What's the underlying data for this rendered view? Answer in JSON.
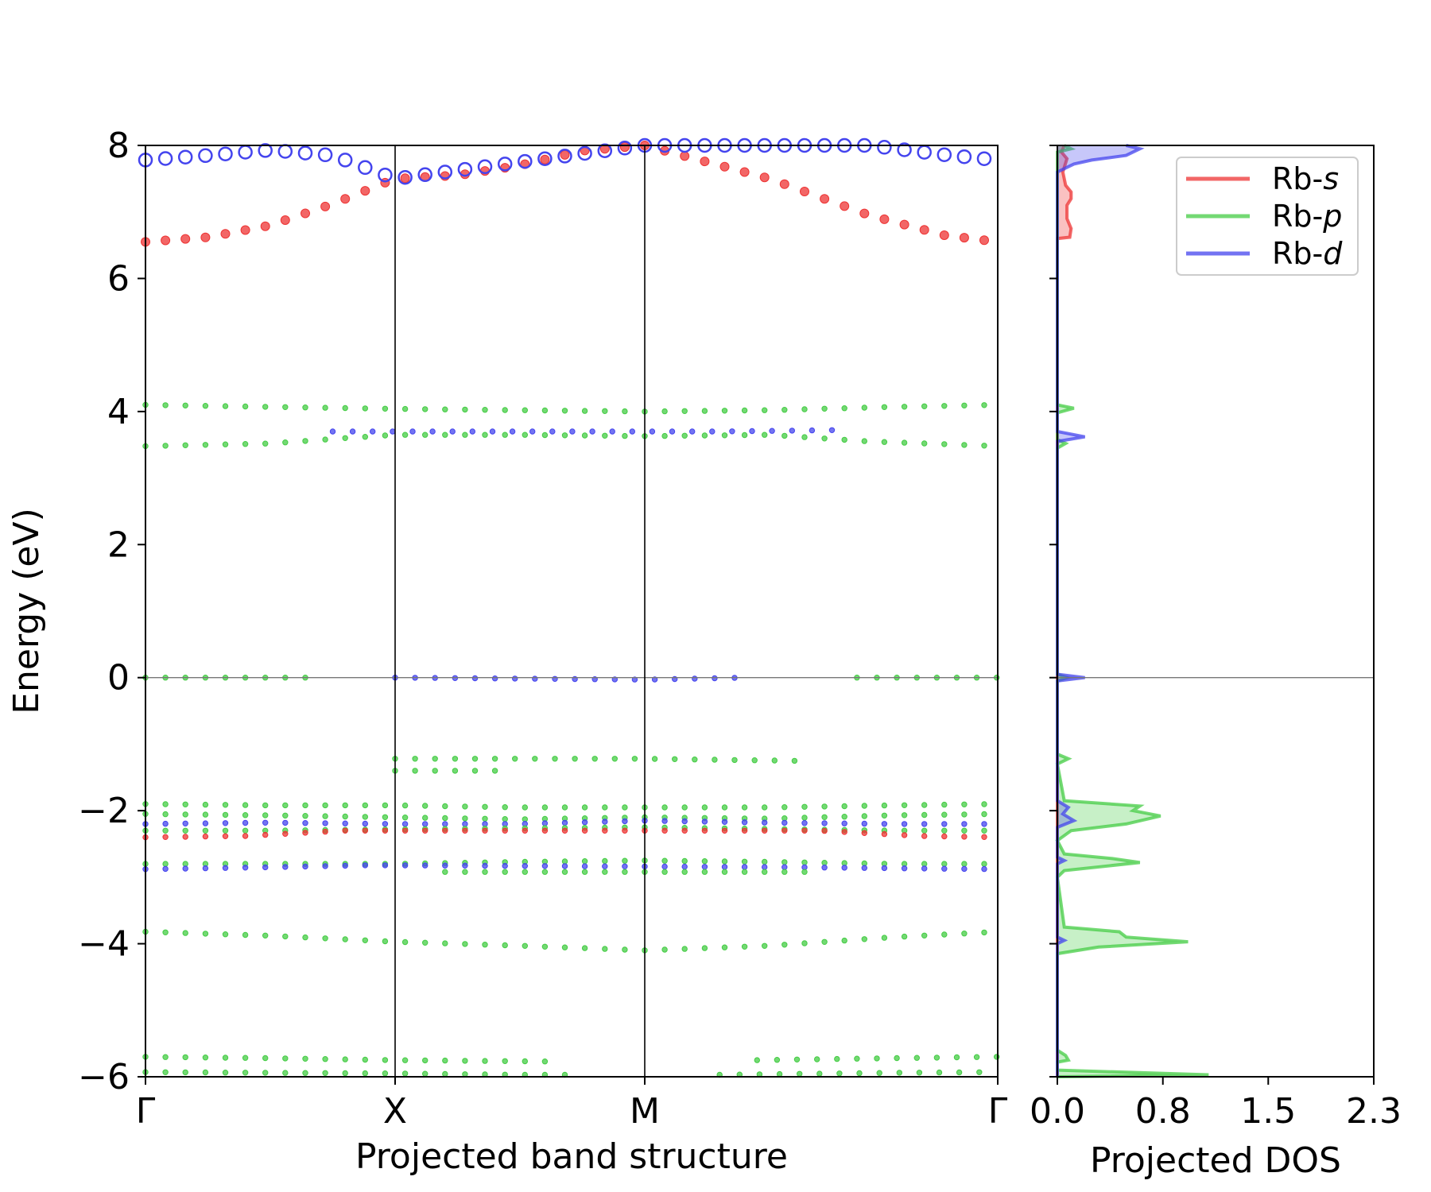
{
  "chart_data": [
    {
      "type": "scatter",
      "title": "",
      "xlabel": "Projected band structure",
      "ylabel": "Energy (eV)",
      "ylim": [
        -6,
        8
      ],
      "y_ticks": [
        "8",
        "6",
        "4",
        "2",
        "0",
        "−2",
        "−4",
        "−6"
      ],
      "y_tick_values": [
        8,
        6,
        4,
        2,
        0,
        -2,
        -4,
        -6
      ],
      "kpath_labels": [
        "Γ",
        "X",
        "M",
        "Γ"
      ],
      "kpath_positions": [
        0,
        1,
        2,
        3.414
      ],
      "fermi_level": 0,
      "grid": false,
      "series_colors": {
        "s": "#ee3333",
        "p": "#44cc44",
        "d": "#4444ee"
      },
      "bands": [
        {
          "character": "s",
          "points": [
            [
              0,
              6.55
            ],
            [
              0.25,
              6.62
            ],
            [
              0.5,
              6.8
            ],
            [
              0.75,
              7.12
            ],
            [
              1,
              7.5
            ],
            [
              1.25,
              7.55
            ],
            [
              1.5,
              7.7
            ],
            [
              1.75,
              7.92
            ],
            [
              2,
              8.0
            ],
            [
              2.5,
              7.5
            ],
            [
              2.9,
              6.95
            ],
            [
              3.2,
              6.65
            ],
            [
              3.414,
              6.55
            ]
          ]
        },
        {
          "character": "d",
          "points": [
            [
              0,
              7.78
            ],
            [
              0.25,
              7.85
            ],
            [
              0.5,
              7.93
            ],
            [
              0.75,
              7.85
            ],
            [
              1,
              7.5
            ],
            [
              2,
              8.0
            ],
            [
              2.9,
              8.0
            ],
            [
              3.2,
              7.86
            ],
            [
              3.414,
              7.78
            ]
          ]
        },
        {
          "character": "p",
          "points": [
            [
              0,
              4.1
            ],
            [
              0.5,
              4.07
            ],
            [
              1,
              4.04
            ],
            [
              1.5,
              4.02
            ],
            [
              2,
              4.0
            ],
            [
              2.5,
              4.02
            ],
            [
              3,
              4.07
            ],
            [
              3.414,
              4.1
            ]
          ]
        },
        {
          "character": "p",
          "points": [
            [
              0,
              3.48
            ],
            [
              0.5,
              3.52
            ],
            [
              0.8,
              3.6
            ],
            [
              1,
              3.65
            ],
            [
              1.5,
              3.65
            ],
            [
              2,
              3.63
            ],
            [
              2.5,
              3.65
            ],
            [
              2.9,
              3.55
            ],
            [
              3.414,
              3.48
            ]
          ]
        },
        {
          "character": "d",
          "points": [
            [
              0.75,
              3.7
            ],
            [
              1,
              3.7
            ],
            [
              2.3,
              3.7
            ],
            [
              2.75,
              3.72
            ]
          ]
        },
        {
          "character": "p",
          "points": [
            [
              0,
              0.0
            ],
            [
              0.65,
              0.0
            ]
          ]
        },
        {
          "character": "d",
          "points": [
            [
              1,
              0.0
            ],
            [
              2,
              -0.03
            ],
            [
              2.4,
              0.0
            ]
          ]
        },
        {
          "character": "p",
          "points": [
            [
              2.85,
              0.0
            ],
            [
              3.414,
              0.0
            ]
          ]
        },
        {
          "character": "p",
          "points": [
            [
              1,
              -1.22
            ],
            [
              1.5,
              -1.22
            ],
            [
              2,
              -1.22
            ],
            [
              2.6,
              -1.25
            ]
          ]
        },
        {
          "character": "p",
          "points": [
            [
              1,
              -1.4
            ],
            [
              1.4,
              -1.4
            ]
          ]
        },
        {
          "character": "p",
          "points": [
            [
              0,
              -1.9
            ],
            [
              0.5,
              -1.92
            ],
            [
              1,
              -1.92
            ],
            [
              1.5,
              -1.95
            ],
            [
              2,
              -1.95
            ],
            [
              2.5,
              -1.95
            ],
            [
              3,
              -1.92
            ],
            [
              3.414,
              -1.9
            ]
          ]
        },
        {
          "character": "p",
          "points": [
            [
              0,
              -2.05
            ],
            [
              0.5,
              -2.07
            ],
            [
              1,
              -2.1
            ],
            [
              1.5,
              -2.13
            ],
            [
              2,
              -2.1
            ],
            [
              2.5,
              -2.12
            ],
            [
              3,
              -2.07
            ],
            [
              3.414,
              -2.05
            ]
          ]
        },
        {
          "character": "d",
          "points": [
            [
              0,
              -2.2
            ],
            [
              0.5,
              -2.18
            ],
            [
              1,
              -2.2
            ],
            [
              1.5,
              -2.2
            ],
            [
              2,
              -2.15
            ],
            [
              2.5,
              -2.18
            ],
            [
              3,
              -2.2
            ],
            [
              3.414,
              -2.2
            ]
          ]
        },
        {
          "character": "p",
          "points": [
            [
              0,
              -2.3
            ],
            [
              0.5,
              -2.3
            ],
            [
              1,
              -2.28
            ],
            [
              2,
              -2.25
            ],
            [
              3,
              -2.3
            ],
            [
              3.414,
              -2.3
            ]
          ]
        },
        {
          "character": "s",
          "points": [
            [
              0,
              -2.4
            ],
            [
              0.4,
              -2.38
            ],
            [
              0.8,
              -2.3
            ],
            [
              2.7,
              -2.3
            ],
            [
              3.1,
              -2.38
            ],
            [
              3.414,
              -2.4
            ]
          ]
        },
        {
          "character": "p",
          "points": [
            [
              0,
              -2.8
            ],
            [
              0.5,
              -2.8
            ],
            [
              1,
              -2.8
            ],
            [
              1.5,
              -2.77
            ],
            [
              2,
              -2.75
            ],
            [
              2.5,
              -2.77
            ],
            [
              3,
              -2.8
            ],
            [
              3.414,
              -2.8
            ]
          ]
        },
        {
          "character": "d",
          "points": [
            [
              0,
              -2.88
            ],
            [
              0.5,
              -2.85
            ],
            [
              0.9,
              -2.82
            ],
            [
              2.6,
              -2.85
            ],
            [
              3.414,
              -2.88
            ]
          ]
        },
        {
          "character": "p",
          "points": [
            [
              1.2,
              -2.92
            ],
            [
              2,
              -2.92
            ],
            [
              2.7,
              -2.92
            ]
          ]
        },
        {
          "character": "p",
          "points": [
            [
              0,
              -3.82
            ],
            [
              0.5,
              -3.88
            ],
            [
              1,
              -3.97
            ],
            [
              1.5,
              -4.03
            ],
            [
              2,
              -4.1
            ],
            [
              2.5,
              -4.03
            ],
            [
              3,
              -3.9
            ],
            [
              3.414,
              -3.82
            ]
          ]
        },
        {
          "character": "p",
          "points": [
            [
              0,
              -5.7
            ],
            [
              0.5,
              -5.72
            ],
            [
              1,
              -5.75
            ],
            [
              1.6,
              -5.77
            ]
          ]
        },
        {
          "character": "p",
          "points": [
            [
              2.45,
              -5.75
            ],
            [
              3,
              -5.72
            ],
            [
              3.414,
              -5.7
            ]
          ]
        },
        {
          "character": "p",
          "points": [
            [
              0,
              -5.93
            ],
            [
              0.5,
              -5.94
            ],
            [
              1,
              -5.95
            ],
            [
              1.5,
              -5.97
            ],
            [
              1.75,
              -5.97
            ]
          ]
        },
        {
          "character": "p",
          "points": [
            [
              2.3,
              -5.97
            ],
            [
              3,
              -5.94
            ],
            [
              3.414,
              -5.93
            ]
          ]
        }
      ]
    },
    {
      "type": "area",
      "title": "",
      "xlabel": "Projected DOS",
      "ylabel": "",
      "xlim": [
        0,
        2.3
      ],
      "ylim": [
        -6,
        8
      ],
      "x_ticks": [
        "0.0",
        "0.8",
        "1.5",
        "2.3"
      ],
      "x_tick_values": [
        0,
        0.767,
        1.533,
        2.3
      ],
      "y_tick_values": [
        8,
        6,
        4,
        2,
        0,
        -2,
        -4,
        -6
      ],
      "legend": {
        "position": "top-right",
        "entries": [
          {
            "prefix": "Rb-",
            "orbital": "s",
            "color": "#ee3333"
          },
          {
            "prefix": "Rb-",
            "orbital": "p",
            "color": "#44cc44"
          },
          {
            "prefix": "Rb-",
            "orbital": "d",
            "color": "#4444ee"
          }
        ]
      },
      "series": [
        {
          "name": "Rb-s",
          "color": "#ee3333",
          "points": [
            [
              0,
              -6
            ],
            [
              0,
              6.6
            ],
            [
              0.09,
              6.62
            ],
            [
              0.1,
              6.75
            ],
            [
              0.07,
              6.9
            ],
            [
              0.07,
              7.1
            ],
            [
              0.1,
              7.2
            ],
            [
              0.1,
              7.3
            ],
            [
              0.06,
              7.4
            ],
            [
              0.04,
              7.6
            ],
            [
              0.07,
              7.8
            ],
            [
              0.03,
              7.9
            ],
            [
              0.05,
              8.0
            ]
          ]
        },
        {
          "name": "Rb-p",
          "color": "#44cc44",
          "points": [
            [
              0,
              -6
            ],
            [
              1.1,
              -5.97
            ],
            [
              0,
              -5.9
            ],
            [
              0,
              -5.78
            ],
            [
              0.08,
              -5.75
            ],
            [
              0.06,
              -5.68
            ],
            [
              0,
              -5.6
            ],
            [
              0,
              -4.15
            ],
            [
              0.3,
              -4.05
            ],
            [
              0.95,
              -3.97
            ],
            [
              0.5,
              -3.9
            ],
            [
              0.45,
              -3.82
            ],
            [
              0.05,
              -3.75
            ],
            [
              0,
              -3.0
            ],
            [
              0.05,
              -2.9
            ],
            [
              0.6,
              -2.78
            ],
            [
              0.4,
              -2.72
            ],
            [
              0.05,
              -2.65
            ],
            [
              0,
              -2.45
            ],
            [
              0.1,
              -2.3
            ],
            [
              0.5,
              -2.2
            ],
            [
              0.75,
              -2.08
            ],
            [
              0.55,
              -2.0
            ],
            [
              0.6,
              -1.93
            ],
            [
              0.05,
              -1.85
            ],
            [
              0,
              -1.3
            ],
            [
              0.08,
              -1.22
            ],
            [
              0,
              -1.15
            ],
            [
              0,
              -0.05
            ],
            [
              0.07,
              0.0
            ],
            [
              0,
              0.05
            ],
            [
              0,
              3.45
            ],
            [
              0.06,
              3.52
            ],
            [
              0,
              3.58
            ],
            [
              0,
              3.98
            ],
            [
              0.12,
              4.05
            ],
            [
              0,
              4.1
            ],
            [
              0,
              7.9
            ],
            [
              0.1,
              7.95
            ],
            [
              0.05,
              8.0
            ]
          ]
        },
        {
          "name": "Rb-d",
          "color": "#4444ee",
          "points": [
            [
              0,
              -6
            ],
            [
              0,
              -4.0
            ],
            [
              0.05,
              -3.95
            ],
            [
              0,
              -3.9
            ],
            [
              0,
              -2.8
            ],
            [
              0.05,
              -2.75
            ],
            [
              0,
              -2.7
            ],
            [
              0,
              -2.25
            ],
            [
              0.12,
              -2.15
            ],
            [
              0.04,
              -2.05
            ],
            [
              0.08,
              -1.95
            ],
            [
              0,
              -1.85
            ],
            [
              0,
              -0.05
            ],
            [
              0.2,
              0.0
            ],
            [
              0,
              0.05
            ],
            [
              0,
              3.55
            ],
            [
              0.2,
              3.62
            ],
            [
              0,
              3.7
            ],
            [
              0,
              7.6
            ],
            [
              0.12,
              7.72
            ],
            [
              0.25,
              7.78
            ],
            [
              0.5,
              7.85
            ],
            [
              0.6,
              7.95
            ],
            [
              0.5,
              8.0
            ]
          ]
        }
      ]
    }
  ]
}
